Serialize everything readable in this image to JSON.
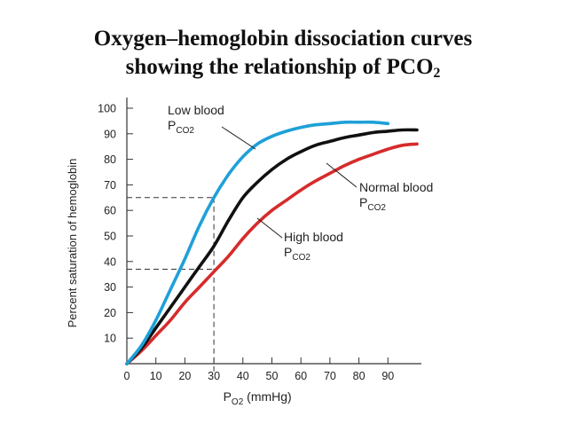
{
  "title": {
    "line1": "Oxygen–hemoglobin dissociation curves",
    "line2_text": "showing the relationship of PCO",
    "line2_sub": "2"
  },
  "colors": {
    "low": "#1ea0d8",
    "normal": "#111111",
    "high": "#d62b2b",
    "axis": "#333333",
    "guides": "#333333"
  },
  "chart_data": {
    "type": "line",
    "title": "",
    "xlabel": {
      "base": "P",
      "sub": "O2",
      "unit": " (mmHg)"
    },
    "ylabel": "Percent saturation of hemoglobin",
    "xlim": [
      0,
      100
    ],
    "ylim": [
      0,
      100
    ],
    "x_ticks": [
      0,
      10,
      20,
      30,
      40,
      50,
      60,
      70,
      80,
      90
    ],
    "y_ticks": [
      10,
      20,
      30,
      40,
      50,
      60,
      70,
      80,
      90,
      100
    ],
    "series": [
      {
        "name": "Low blood PCO2",
        "color_key": "low",
        "x": [
          0,
          5,
          10,
          15,
          20,
          25,
          30,
          35,
          40,
          45,
          50,
          55,
          60,
          65,
          70,
          75,
          80,
          85,
          90
        ],
        "y": [
          0,
          7,
          17,
          29,
          41,
          54,
          65,
          74,
          81,
          86,
          89,
          91,
          92.5,
          93.5,
          94,
          94.5,
          94.5,
          94.5,
          94
        ]
      },
      {
        "name": "Normal blood PCO2",
        "color_key": "normal",
        "x": [
          0,
          5,
          10,
          15,
          20,
          25,
          30,
          35,
          40,
          45,
          50,
          55,
          60,
          65,
          70,
          75,
          80,
          85,
          90,
          95,
          100
        ],
        "y": [
          0,
          6,
          14,
          22,
          30,
          38,
          46,
          56,
          65,
          71,
          76,
          80,
          83,
          85.5,
          87,
          88.5,
          89.5,
          90.5,
          91,
          91.5,
          91.5
        ]
      },
      {
        "name": "High blood PCO2",
        "color_key": "high",
        "x": [
          0,
          5,
          10,
          15,
          20,
          25,
          30,
          35,
          40,
          45,
          50,
          55,
          60,
          65,
          70,
          75,
          80,
          85,
          90,
          95,
          100
        ],
        "y": [
          0,
          5,
          11,
          17,
          24,
          30,
          36,
          42,
          49,
          55,
          60,
          64,
          68,
          71.5,
          74.5,
          77.5,
          80,
          82,
          84,
          85.5,
          86
        ]
      }
    ],
    "annotations": [
      {
        "id": "low",
        "line1": "Low blood",
        "sub_base": "P",
        "sub_text": "CO2"
      },
      {
        "id": "normal",
        "line1": "Normal blood",
        "sub_base": "P",
        "sub_text": "CO2"
      },
      {
        "id": "high",
        "line1": "High blood",
        "sub_base": "P",
        "sub_text": "CO2"
      }
    ],
    "reference_lines": {
      "x": 30,
      "y": [
        65,
        37
      ]
    }
  }
}
